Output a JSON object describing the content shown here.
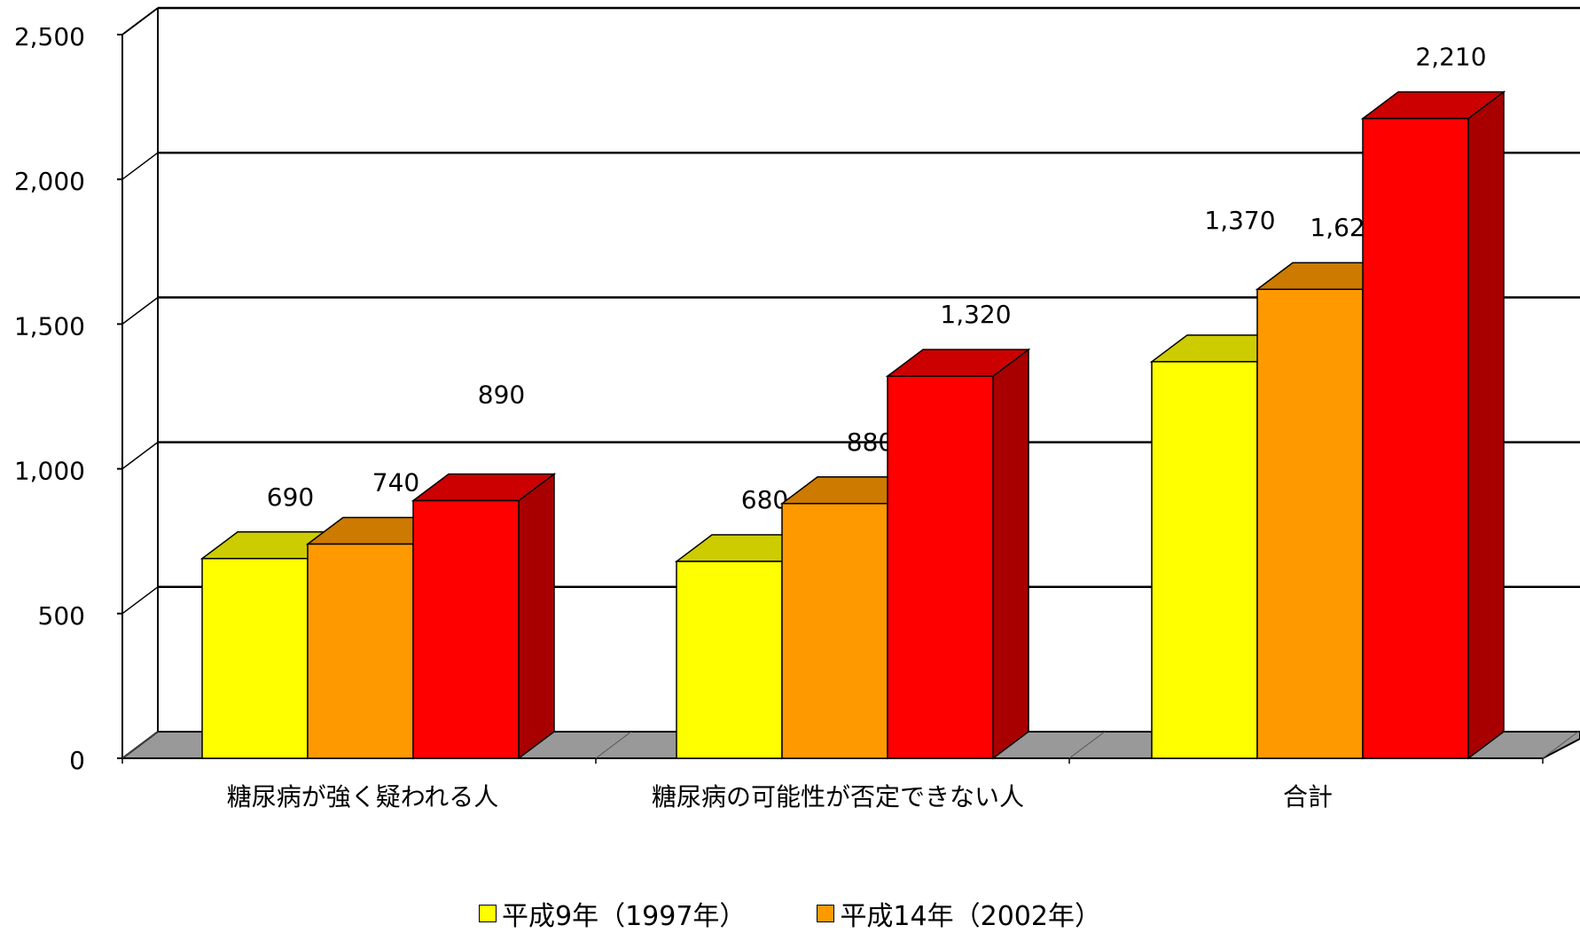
{
  "chart_data": {
    "type": "bar",
    "title": "",
    "xlabel": "",
    "ylabel": "",
    "ylim": [
      0,
      2500
    ],
    "yticks": [
      "0",
      "500",
      "1,000",
      "1,500",
      "2,000",
      "2,500"
    ],
    "categories": [
      "糖尿病が強く疑われる人",
      "糖尿病の可能性が否定できない人",
      "合計"
    ],
    "series": [
      {
        "name": "平成9年（1997年）",
        "values": [
          690,
          680,
          1370
        ],
        "labels": [
          "690",
          "680",
          "1,370"
        ]
      },
      {
        "name": "平成14年（2002年）",
        "values": [
          740,
          880,
          1620
        ],
        "labels": [
          "740",
          "880",
          "1,620"
        ]
      },
      {
        "name": "",
        "values": [
          890,
          1320,
          2210
        ],
        "labels": [
          "890",
          "1,320",
          "2,210"
        ]
      }
    ],
    "grid": true,
    "legend_position": "bottom",
    "colors": {
      "series": [
        "#ffff00",
        "#ff9900",
        "#ff0000"
      ],
      "series_top": [
        "#cccc00",
        "#cc7a00",
        "#cc0000"
      ],
      "series_side": [
        "#999900",
        "#b36b00",
        "#a80000"
      ],
      "floor": "#999999"
    }
  }
}
